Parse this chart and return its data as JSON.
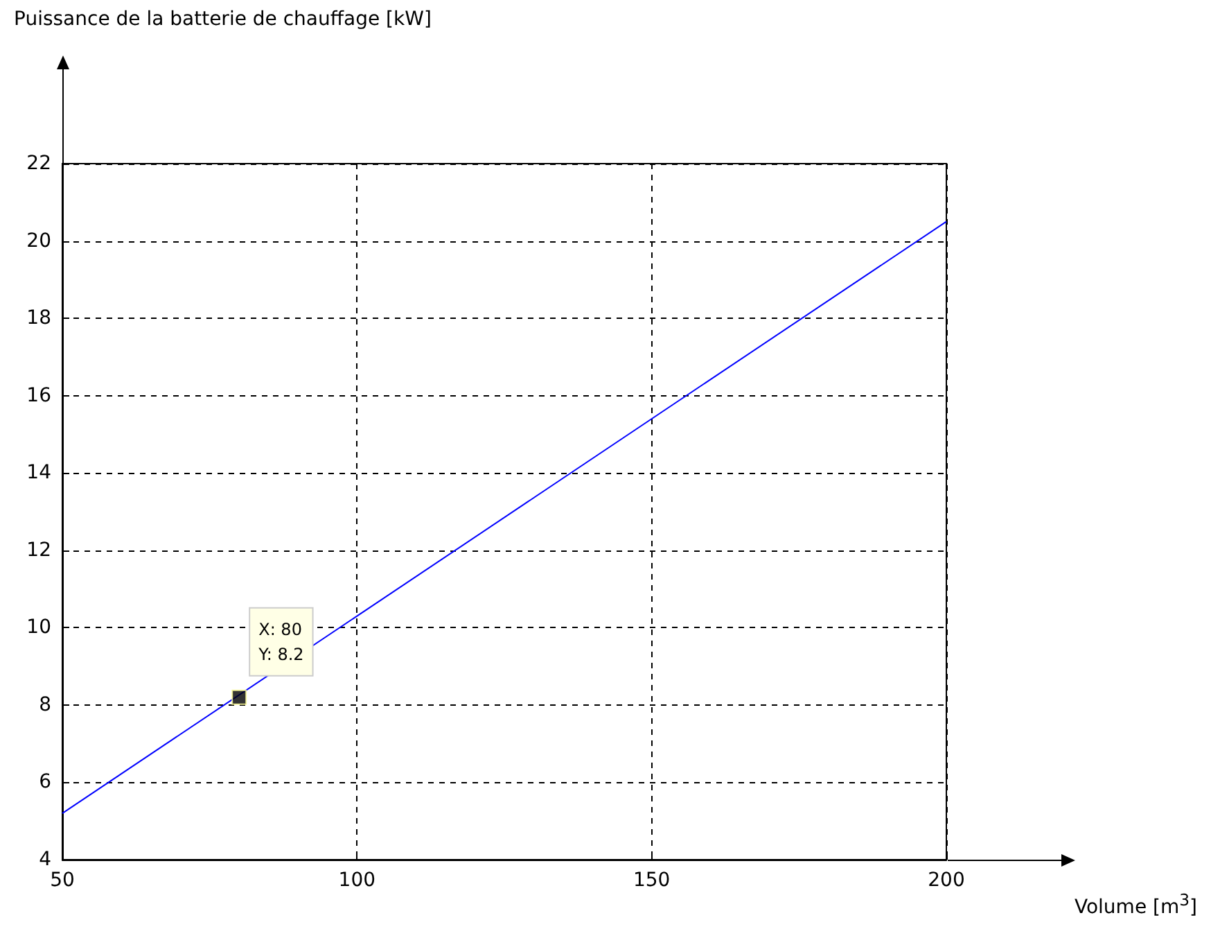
{
  "chart_data": {
    "type": "line",
    "series": [
      {
        "type": "line",
        "color": "#0000ff",
        "x": [
          50,
          200
        ],
        "values": [
          5.2,
          20.5
        ]
      },
      {
        "type": "scatter",
        "color": "#000000",
        "marker": "square",
        "x": [
          80
        ],
        "values": [
          8.2
        ]
      }
    ],
    "annotations": [
      "Puissance de la batterie de chauffage [kW]",
      "Volume [m$^{3}$]",
      {
        "text": "X: 80\nY: 8.2",
        "x": 80,
        "y": 8.2
      }
    ],
    "xlim": [
      50,
      200
    ],
    "xticks": [
      50,
      100,
      150,
      200
    ],
    "ylim": [
      4,
      22
    ],
    "yticks": [
      4,
      6,
      8,
      10,
      12,
      14,
      16,
      18,
      20,
      22
    ],
    "grid": true
  }
}
